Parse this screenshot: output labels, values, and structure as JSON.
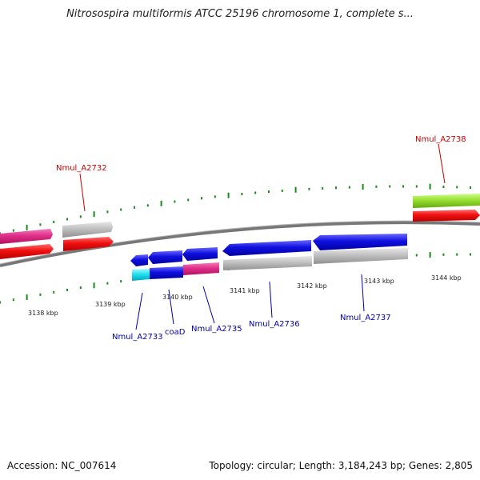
{
  "title": "Nitrosospira multiformis ATCC 25196 chromosome 1, complete s...",
  "footer": {
    "accession": "Accession: NC_007614",
    "summary": "Topology: circular; Length: 3,184,243 bp; Genes: 2,805"
  },
  "ticks": [
    "3138 kbp",
    "3139 kbp",
    "3140 kbp",
    "3141 kbp",
    "3142 kbp",
    "3143 kbp",
    "3144 kbp"
  ],
  "gene_labels": [
    {
      "name": "Nmul_A2732",
      "strand": "forward",
      "color": "#cc0000"
    },
    {
      "name": "Nmul_A2738",
      "strand": "forward",
      "color": "#cc0000"
    },
    {
      "name": "Nmul_A2733",
      "strand": "reverse",
      "color": "#0000aa"
    },
    {
      "name": "coaD",
      "strand": "reverse",
      "color": "#0000aa"
    },
    {
      "name": "Nmul_A2735",
      "strand": "reverse",
      "color": "#0000aa"
    },
    {
      "name": "Nmul_A2736",
      "strand": "reverse",
      "color": "#0000aa"
    },
    {
      "name": "Nmul_A2737",
      "strand": "reverse",
      "color": "#0000aa"
    }
  ],
  "colors": {
    "backbone": "#808080",
    "tick": "#1a8a1a",
    "gene_blue": "#1010e0",
    "gene_red": "#f01010",
    "gene_magenta": "#e0308a",
    "gene_grey": "#b8b8b8",
    "gene_green": "#99e033",
    "gene_cyan": "#22e0f0"
  }
}
